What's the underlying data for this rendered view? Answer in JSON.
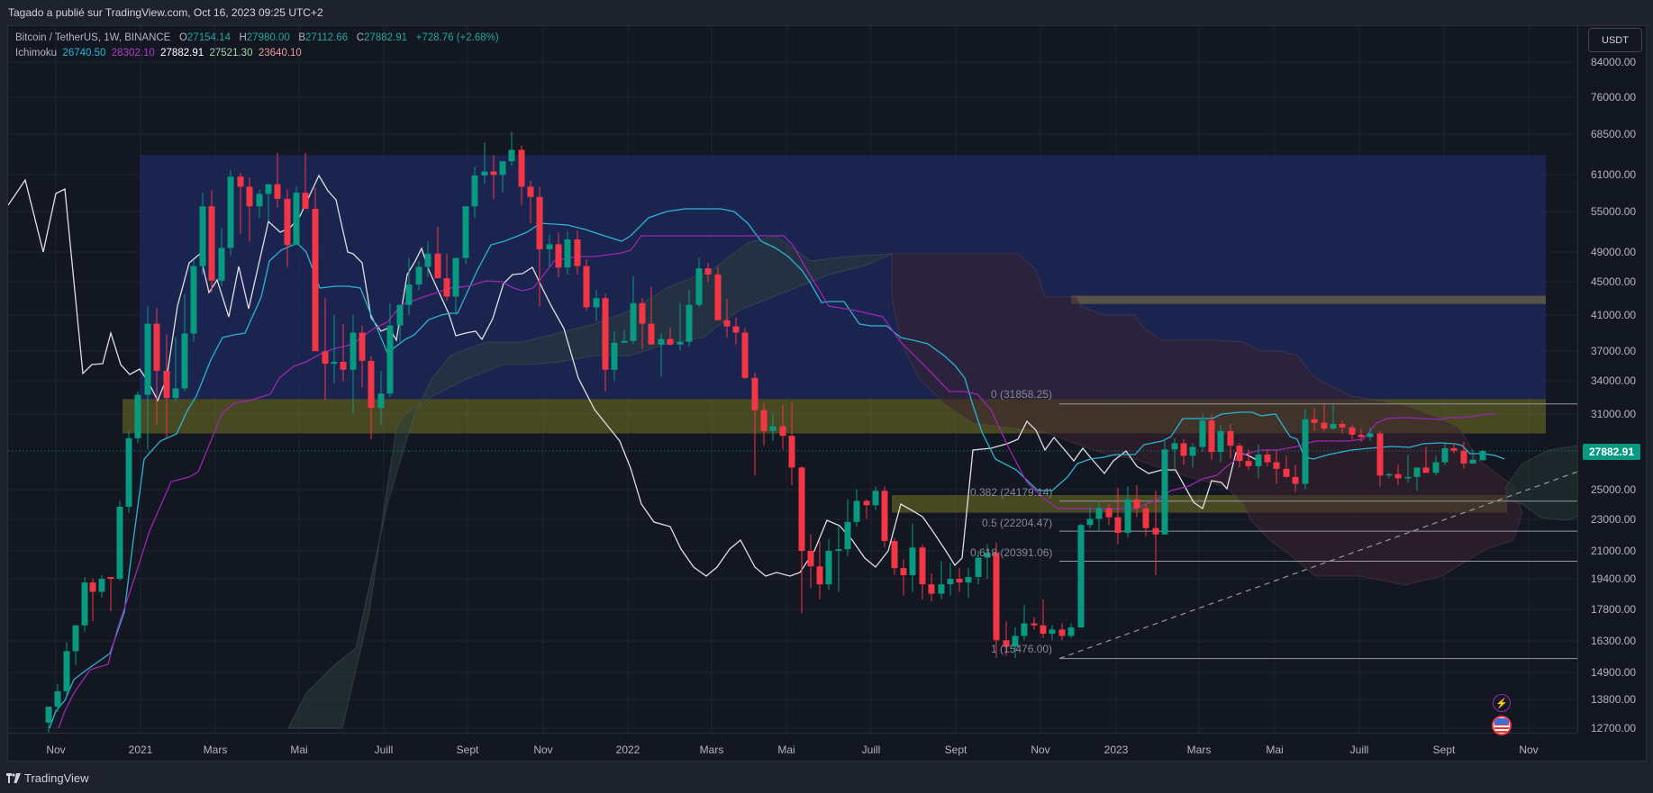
{
  "header": {
    "published": "Tagado a publié sur TradingView.com, Oct 16, 2023 09:25 UTC+2"
  },
  "legend": {
    "symbol": "Bitcoin / TetherUS, 1W, BINANCE",
    "o_label": "O",
    "o": "27154.14",
    "h_label": "H",
    "h": "27980.00",
    "b_label": "B",
    "b": "27112.66",
    "c_label": "C",
    "c": "27882.91",
    "change": "+728.76 (+2.68%)",
    "indicator_name": "Ichimoku",
    "ichimoku_values": [
      {
        "value": "26740.50",
        "color": "#2ab4d4"
      },
      {
        "value": "28302.10",
        "color": "#9c27b0"
      },
      {
        "value": "27882.91",
        "color": "#ffffff"
      },
      {
        "value": "27521.30",
        "color": "#a5d6a7"
      },
      {
        "value": "23640.10",
        "color": "#ef9a9a"
      }
    ]
  },
  "price_axis": {
    "currency_button": "USDT",
    "ticks": [
      "84000.00",
      "76000.00",
      "68500.00",
      "61000.00",
      "55000.00",
      "49000.00",
      "45000.00",
      "41000.00",
      "37000.00",
      "34000.00",
      "31000.00",
      "25000.00",
      "23000.00",
      "21000.00",
      "19400.00",
      "17800.00",
      "16300.00",
      "14900.00",
      "13800.00",
      "12700.00"
    ],
    "last_price": "27882.91",
    "last_price_color": "#089981"
  },
  "time_axis": {
    "ticks": [
      "Nov",
      "2021",
      "Mars",
      "Mai",
      "Juill",
      "Sept",
      "Nov",
      "2022",
      "Mars",
      "Mai",
      "Juill",
      "Sept",
      "Nov",
      "2023",
      "Mars",
      "Mai",
      "Juill",
      "Sept",
      "Nov"
    ]
  },
  "fibonacci": [
    {
      "label": "0 (31858.25)"
    },
    {
      "label": "0.382 (24179.14)"
    },
    {
      "label": "0.5 (22204.47)"
    },
    {
      "label": "0.618 (20391.06)"
    },
    {
      "label": "1 (15476.00)"
    }
  ],
  "events": {
    "lightning": "lightning-event",
    "flag": "us-economic-event"
  },
  "footer": {
    "brand": "TradingView"
  },
  "colors": {
    "up": "#089981",
    "down": "#f23645",
    "tenkan": "#2ab4d4",
    "kijun": "#9c27b0",
    "chikou": "#e0e0e0",
    "box_blue": "#1f3a8a",
    "box_yellow": "#8a8a2a"
  },
  "chart_data": {
    "type": "candlestick",
    "title": "Bitcoin / TetherUS, 1W, BINANCE",
    "xlabel": "",
    "ylabel": "USDT",
    "scale": "log",
    "ylim": [
      12000,
      88000
    ],
    "x_range": [
      "2020-10",
      "2023-12"
    ],
    "last_close": 27882.91,
    "ohlc_latest": {
      "open": 27154.14,
      "high": 27980.0,
      "low": 27112.66,
      "close": 27882.91,
      "change": 728.76,
      "change_pct": 2.68
    },
    "indicators": {
      "ichimoku": {
        "tenkan": 26740.5,
        "kijun": 28302.1,
        "chikou": 27882.91,
        "senkou_a": 27521.3,
        "senkou_b": 23640.1
      }
    },
    "fibonacci_retracement": [
      {
        "level": 0,
        "price": 31858.25
      },
      {
        "level": 0.382,
        "price": 24179.14
      },
      {
        "level": 0.5,
        "price": 22204.47
      },
      {
        "level": 0.618,
        "price": 20391.06
      },
      {
        "level": 1,
        "price": 15476.0
      }
    ],
    "zones": [
      {
        "name": "blue-range",
        "from": 29500,
        "to": 64500,
        "start": "2020-12",
        "end": "2023-11"
      },
      {
        "name": "yellow-resistance",
        "from": 29300,
        "to": 32300
      },
      {
        "name": "yellow-support",
        "from": 23400,
        "to": 24600
      },
      {
        "name": "upper-resistance-bar",
        "from": 42300,
        "to": 43300
      }
    ],
    "weekly_closes_approx": [
      {
        "x": "2020-11",
        "c": 13800
      },
      {
        "x": "2020-12",
        "c": 19000
      },
      {
        "x": "2021-01",
        "c": 33000
      },
      {
        "x": "2021-02",
        "c": 46000
      },
      {
        "x": "2021-03",
        "c": 57000
      },
      {
        "x": "2021-04",
        "c": 56000
      },
      {
        "x": "2021-05",
        "c": 35000
      },
      {
        "x": "2021-06",
        "c": 34000
      },
      {
        "x": "2021-07",
        "c": 39000
      },
      {
        "x": "2021-08",
        "c": 47000
      },
      {
        "x": "2021-09",
        "c": 43000
      },
      {
        "x": "2021-10",
        "c": 61000
      },
      {
        "x": "2021-11",
        "c": 57000
      },
      {
        "x": "2021-12",
        "c": 47000
      },
      {
        "x": "2022-01",
        "c": 38000
      },
      {
        "x": "2022-02",
        "c": 39000
      },
      {
        "x": "2022-03",
        "c": 45000
      },
      {
        "x": "2022-04",
        "c": 38000
      },
      {
        "x": "2022-05",
        "c": 30000
      },
      {
        "x": "2022-06",
        "c": 19000
      },
      {
        "x": "2022-07",
        "c": 23000
      },
      {
        "x": "2022-08",
        "c": 20000
      },
      {
        "x": "2022-09",
        "c": 19400
      },
      {
        "x": "2022-10",
        "c": 20500
      },
      {
        "x": "2022-11",
        "c": 16300
      },
      {
        "x": "2022-12",
        "c": 16500
      },
      {
        "x": "2023-01",
        "c": 23000
      },
      {
        "x": "2023-02",
        "c": 23500
      },
      {
        "x": "2023-03",
        "c": 28000
      },
      {
        "x": "2023-04",
        "c": 29200
      },
      {
        "x": "2023-05",
        "c": 27000
      },
      {
        "x": "2023-06",
        "c": 30400
      },
      {
        "x": "2023-07",
        "c": 29200
      },
      {
        "x": "2023-08",
        "c": 26000
      },
      {
        "x": "2023-09",
        "c": 27000
      },
      {
        "x": "2023-10",
        "c": 27882.91
      }
    ]
  }
}
